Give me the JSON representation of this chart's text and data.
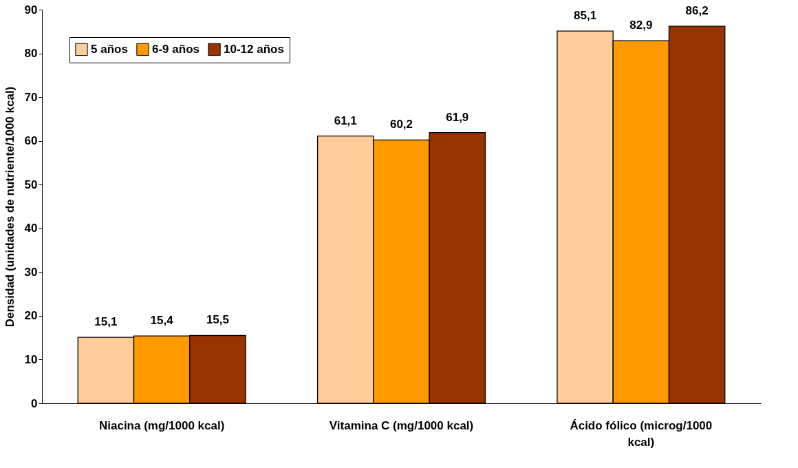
{
  "chart_data": {
    "type": "bar",
    "ylabel": "Densidad (unidades de nutriente/1000 kcal)",
    "categories": [
      "Niacina (mg/1000 kcal)",
      "Vitamina C (mg/1000 kcal)",
      "Ácido fólico (microg/1000 kcal)"
    ],
    "series": [
      {
        "name": "5 años",
        "color": "#ffcc99",
        "values": [
          15.1,
          61.1,
          85.1
        ],
        "value_labels": [
          "15,1",
          "61,1",
          "85,1"
        ]
      },
      {
        "name": "6-9 años",
        "color": "#ff9900",
        "values": [
          15.4,
          60.2,
          82.9
        ],
        "value_labels": [
          "15,4",
          "60,2",
          "82,9"
        ]
      },
      {
        "name": "10-12 años",
        "color": "#993300",
        "values": [
          15.5,
          61.9,
          86.2
        ],
        "value_labels": [
          "15,5",
          "61,9",
          "86,2"
        ]
      }
    ],
    "ylim": [
      0,
      90
    ],
    "yticks": [
      0,
      10,
      20,
      30,
      40,
      50,
      60,
      70,
      80,
      90
    ],
    "grid": false,
    "legend": "top left"
  }
}
